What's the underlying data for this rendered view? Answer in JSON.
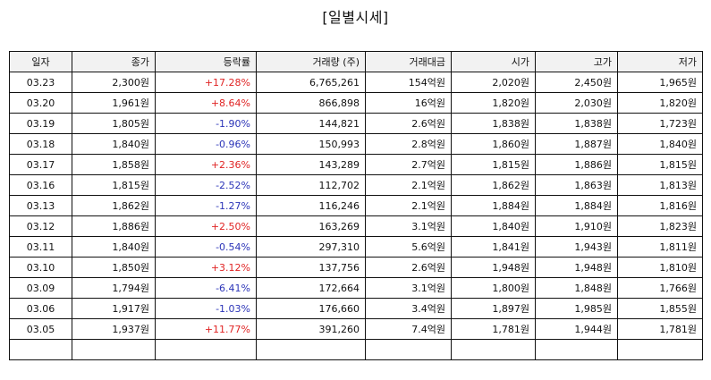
{
  "title": "[일별시세]",
  "columns": [
    "일자",
    "종가",
    "등락률",
    "거래량 (주)",
    "거래대금",
    "시가",
    "고가",
    "저가"
  ],
  "rows": [
    {
      "date": "03.23",
      "close": "2,300원",
      "change": "+17.28%",
      "volume": "6,765,261",
      "amount": "154억원",
      "open": "2,020원",
      "high": "2,450원",
      "low": "1,965원"
    },
    {
      "date": "03.20",
      "close": "1,961원",
      "change": "+8.64%",
      "volume": "866,898",
      "amount": "16억원",
      "open": "1,820원",
      "high": "2,030원",
      "low": "1,820원"
    },
    {
      "date": "03.19",
      "close": "1,805원",
      "change": "-1.90%",
      "volume": "144,821",
      "amount": "2.6억원",
      "open": "1,838원",
      "high": "1,838원",
      "low": "1,723원"
    },
    {
      "date": "03.18",
      "close": "1,840원",
      "change": "-0.96%",
      "volume": "150,993",
      "amount": "2.8억원",
      "open": "1,860원",
      "high": "1,887원",
      "low": "1,840원"
    },
    {
      "date": "03.17",
      "close": "1,858원",
      "change": "+2.36%",
      "volume": "143,289",
      "amount": "2.7억원",
      "open": "1,815원",
      "high": "1,886원",
      "low": "1,815원"
    },
    {
      "date": "03.16",
      "close": "1,815원",
      "change": "-2.52%",
      "volume": "112,702",
      "amount": "2.1억원",
      "open": "1,862원",
      "high": "1,863원",
      "low": "1,813원"
    },
    {
      "date": "03.13",
      "close": "1,862원",
      "change": "-1.27%",
      "volume": "116,246",
      "amount": "2.1억원",
      "open": "1,884원",
      "high": "1,884원",
      "low": "1,816원"
    },
    {
      "date": "03.12",
      "close": "1,886원",
      "change": "+2.50%",
      "volume": "163,269",
      "amount": "3.1억원",
      "open": "1,840원",
      "high": "1,910원",
      "low": "1,823원"
    },
    {
      "date": "03.11",
      "close": "1,840원",
      "change": "-0.54%",
      "volume": "297,310",
      "amount": "5.6억원",
      "open": "1,841원",
      "high": "1,943원",
      "low": "1,811원"
    },
    {
      "date": "03.10",
      "close": "1,850원",
      "change": "+3.12%",
      "volume": "137,756",
      "amount": "2.6억원",
      "open": "1,948원",
      "high": "1,948원",
      "low": "1,810원"
    },
    {
      "date": "03.09",
      "close": "1,794원",
      "change": "-6.41%",
      "volume": "172,664",
      "amount": "3.1억원",
      "open": "1,800원",
      "high": "1,848원",
      "low": "1,766원"
    },
    {
      "date": "03.06",
      "close": "1,917원",
      "change": "-1.03%",
      "volume": "176,660",
      "amount": "3.4억원",
      "open": "1,897원",
      "high": "1,985원",
      "low": "1,855원"
    },
    {
      "date": "03.05",
      "close": "1,937원",
      "change": "+11.77%",
      "volume": "391,260",
      "amount": "7.4억원",
      "open": "1,781원",
      "high": "1,944원",
      "low": "1,781원"
    },
    {
      "date": "",
      "close": "",
      "change": "",
      "volume": "",
      "amount": "",
      "open": "",
      "high": "",
      "low": ""
    }
  ],
  "colors": {
    "up": "#e02424",
    "down": "#2b34b8",
    "header_bg": "#f2f2f2"
  }
}
